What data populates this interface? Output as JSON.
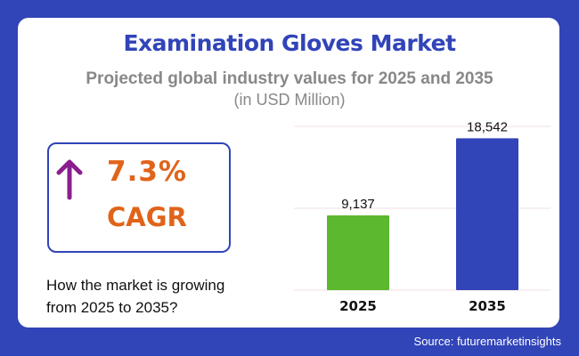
{
  "title": "Examination Gloves Market",
  "subtitle": "Projected global industry values for 2025 and 2035",
  "unit": "(in USD Million)",
  "cagr": {
    "value": "7.3%",
    "label": "CAGR",
    "icon": "arrow-up-icon",
    "arrow_color": "#8b1e8e",
    "text_color": "#e0631a"
  },
  "question": [
    "How the market is growing",
    "from 2025 to 2035?"
  ],
  "source": "Source: futuremarketinsights",
  "colors": {
    "background": "#3144b8",
    "bar_2025": "#5cb82e",
    "bar_2035": "#3144b8"
  },
  "chart_data": {
    "type": "bar",
    "categories": [
      "2025",
      "2035"
    ],
    "values": [
      9137,
      18542
    ],
    "labels": [
      "9,137",
      "18,542"
    ],
    "ylim": [
      0,
      20000
    ],
    "gridlines": [
      0,
      10000,
      20000
    ],
    "grid": true
  }
}
